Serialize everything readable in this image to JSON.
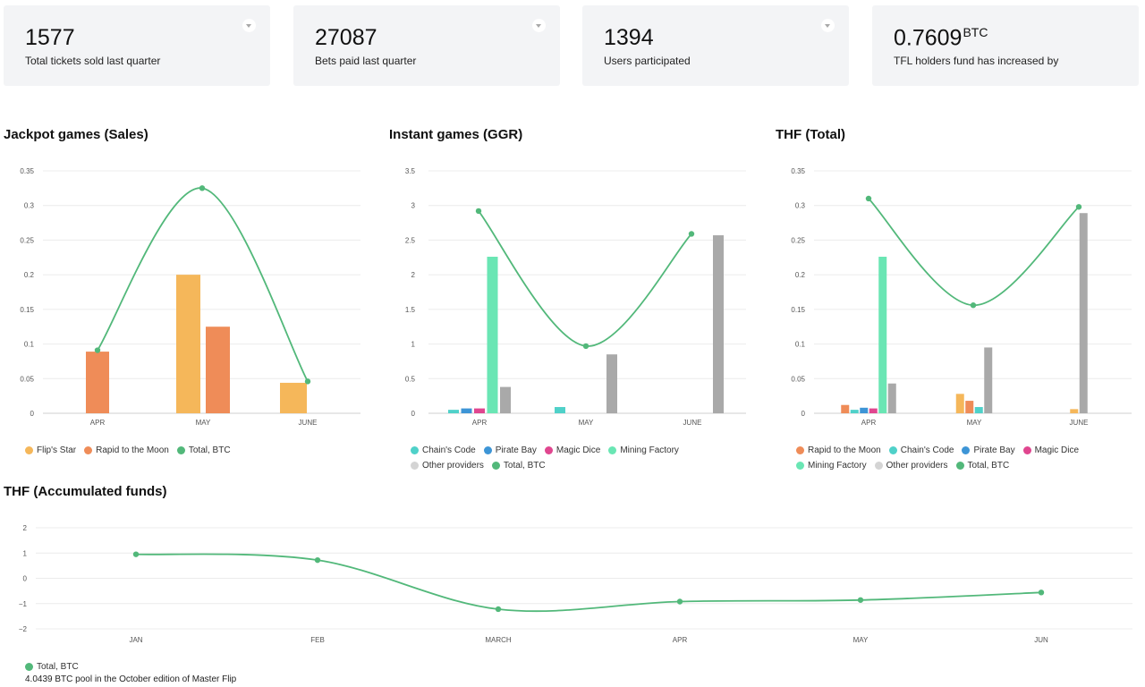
{
  "stats": [
    {
      "value": "1577",
      "unit": "",
      "label": "Total tickets sold last quarter",
      "has_menu": true
    },
    {
      "value": "27087",
      "unit": "",
      "label": "Bets paid last quarter",
      "has_menu": true
    },
    {
      "value": "1394",
      "unit": "",
      "label": "Users participated",
      "has_menu": true
    },
    {
      "value": "0.7609",
      "unit": "BTC",
      "label": "TFL holders fund has increased by",
      "has_menu": false
    }
  ],
  "colors": {
    "flips_star": "#f5b75a",
    "rapid_to_the_moon": "#ef8c58",
    "total_btc": "#52b87a",
    "chains_code": "#4fd1c9",
    "pirate_bay": "#3d95d6",
    "magic_dice": "#e0468f",
    "mining_factory": "#6ae6b4",
    "other_providers": "#a9a9a9",
    "other_providers_legend": "#d4d4d4"
  },
  "footnote": "4.0439 BTC pool in the October edition of Master Flip",
  "chart_data": [
    {
      "id": "jackpot",
      "type": "bar",
      "title": "Jackpot games (Sales)",
      "categories": [
        "APR",
        "MAY",
        "JUNE"
      ],
      "yticks": [
        "0",
        "0.05",
        "0.1",
        "0.15",
        "0.2",
        "0.25",
        "0.3",
        "0.35"
      ],
      "ylim": [
        0,
        0.35
      ],
      "grid": true,
      "legend_position": "bottom-left",
      "series": [
        {
          "name": "Flip's Star",
          "kind": "bar",
          "color": "#f5b75a",
          "values": [
            0,
            0.2,
            0.044
          ]
        },
        {
          "name": "Rapid to the Moon",
          "kind": "bar",
          "color": "#ef8c58",
          "values": [
            0.089,
            0.125,
            0
          ]
        },
        {
          "name": "Total, BTC",
          "kind": "line",
          "color": "#52b87a",
          "values": [
            0.091,
            0.325,
            0.046
          ]
        }
      ]
    },
    {
      "id": "instant",
      "type": "bar",
      "title": "Instant games (GGR)",
      "categories": [
        "APR",
        "MAY",
        "JUNE"
      ],
      "yticks": [
        "0",
        "0.5",
        "1",
        "1.5",
        "2",
        "2.5",
        "3",
        "3.5"
      ],
      "ylim": [
        0,
        3.5
      ],
      "grid": true,
      "legend_position": "bottom-left",
      "series": [
        {
          "name": "Chain's Code",
          "kind": "bar",
          "color": "#4fd1c9",
          "values": [
            0.05,
            0.09,
            0
          ]
        },
        {
          "name": "Pirate Bay",
          "kind": "bar",
          "color": "#3d95d6",
          "values": [
            0.07,
            0,
            0
          ]
        },
        {
          "name": "Magic Dice",
          "kind": "bar",
          "color": "#e0468f",
          "values": [
            0.07,
            0,
            0
          ]
        },
        {
          "name": "Mining Factory",
          "kind": "bar",
          "color": "#6ae6b4",
          "values": [
            2.26,
            0,
            0
          ]
        },
        {
          "name": "Other providers",
          "kind": "bar",
          "color": "#a9a9a9",
          "values": [
            0.38,
            0.85,
            2.57
          ]
        },
        {
          "name": "Total, BTC",
          "kind": "line",
          "color": "#52b87a",
          "values": [
            2.92,
            0.97,
            2.59
          ]
        }
      ]
    },
    {
      "id": "thf_total",
      "type": "bar",
      "title": "THF (Total)",
      "categories": [
        "APR",
        "MAY",
        "JUNE"
      ],
      "yticks": [
        "0",
        "0.05",
        "0.1",
        "0.15",
        "0.2",
        "0.25",
        "0.3",
        "0.35"
      ],
      "ylim": [
        0,
        0.35
      ],
      "grid": true,
      "legend_position": "bottom-left",
      "series": [
        {
          "name": "Rapid to the Moon",
          "kind": "bar",
          "color": "#ef8c58",
          "values": [
            0.012,
            0.018,
            0
          ]
        },
        {
          "name": "Chain's Code",
          "kind": "bar",
          "color": "#4fd1c9",
          "values": [
            0.005,
            0.009,
            0
          ]
        },
        {
          "name": "Pirate Bay",
          "kind": "bar",
          "color": "#3d95d6",
          "values": [
            0.008,
            0,
            0
          ]
        },
        {
          "name": "Magic Dice",
          "kind": "bar",
          "color": "#e0468f",
          "values": [
            0.007,
            0,
            0
          ]
        },
        {
          "name": "Mining Factory",
          "kind": "bar",
          "color": "#6ae6b4",
          "values": [
            0.226,
            0,
            0
          ]
        },
        {
          "name": "Other providers",
          "kind": "bar",
          "color": "#a9a9a9",
          "values": [
            0.043,
            0.095,
            0.289
          ]
        },
        {
          "name": "Total, BTC",
          "kind": "line",
          "color": "#52b87a",
          "values": [
            0.31,
            0.156,
            0.298
          ]
        }
      ],
      "extra_bars": [
        {
          "category": "MAY",
          "name": "Flip's Star",
          "color": "#f5b75a",
          "value": 0.028
        },
        {
          "category": "JUNE",
          "name": "Flip's Star",
          "color": "#f5b75a",
          "value": 0.006
        }
      ]
    },
    {
      "id": "thf_accumulated",
      "type": "line",
      "title": "THF (Accumulated funds)",
      "categories": [
        "JAN",
        "FEB",
        "MARCH",
        "APR",
        "MAY",
        "JUN"
      ],
      "yticks": [
        "−2",
        "−1",
        "0",
        "1",
        "2"
      ],
      "ylim": [
        -2,
        2
      ],
      "grid": true,
      "legend_position": "bottom-left",
      "series": [
        {
          "name": "Total, BTC",
          "kind": "line",
          "color": "#52b87a",
          "values": [
            0.95,
            0.72,
            -1.22,
            -0.92,
            -0.86,
            -0.56
          ]
        }
      ]
    }
  ]
}
